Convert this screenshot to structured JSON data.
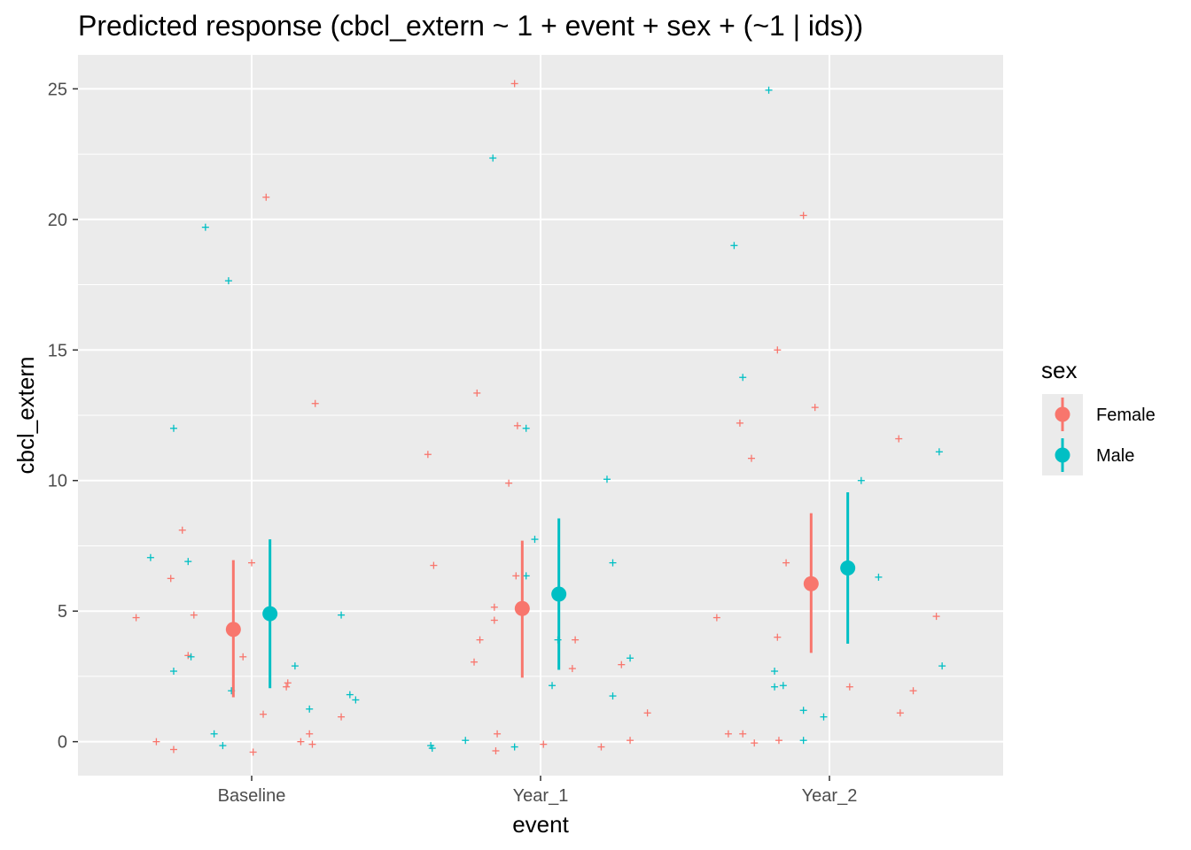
{
  "chart_data": {
    "type": "scatter",
    "title": "Predicted response (cbcl_extern ~ 1 + event + sex + (~1 | ids))",
    "xlabel": "event",
    "ylabel": "cbcl_extern",
    "categories": [
      "Baseline",
      "Year_1",
      "Year_2"
    ],
    "ylim": [
      -1.3,
      26.3
    ],
    "yticks": [
      0,
      5,
      10,
      15,
      20,
      25
    ],
    "grid": true,
    "legend": {
      "title": "sex",
      "position": "right"
    },
    "series": [
      {
        "name": "Female",
        "color": "#F8766D",
        "predicted": [
          {
            "category": "Baseline",
            "mean": 4.3,
            "lower": 1.7,
            "upper": 6.95
          },
          {
            "category": "Year_1",
            "mean": 5.1,
            "lower": 2.45,
            "upper": 7.7
          },
          {
            "category": "Year_2",
            "mean": 6.05,
            "lower": 3.4,
            "upper": 8.75
          }
        ],
        "raw": [
          {
            "category": "Baseline",
            "offset": -0.4,
            "y": 4.75
          },
          {
            "category": "Baseline",
            "offset": -0.33,
            "y": 0.0
          },
          {
            "category": "Baseline",
            "offset": -0.28,
            "y": 6.25
          },
          {
            "category": "Baseline",
            "offset": -0.27,
            "y": -0.3
          },
          {
            "category": "Baseline",
            "offset": -0.24,
            "y": 8.1
          },
          {
            "category": "Baseline",
            "offset": -0.22,
            "y": 3.3
          },
          {
            "category": "Baseline",
            "offset": -0.2,
            "y": 4.85
          },
          {
            "category": "Baseline",
            "offset": -0.03,
            "y": 3.25
          },
          {
            "category": "Baseline",
            "offset": 0.0,
            "y": 6.85
          },
          {
            "category": "Baseline",
            "offset": 0.005,
            "y": -0.4
          },
          {
            "category": "Baseline",
            "offset": 0.04,
            "y": 1.05
          },
          {
            "category": "Baseline",
            "offset": 0.05,
            "y": 20.85
          },
          {
            "category": "Baseline",
            "offset": 0.12,
            "y": 2.1
          },
          {
            "category": "Baseline",
            "offset": 0.125,
            "y": 2.25
          },
          {
            "category": "Baseline",
            "offset": 0.17,
            "y": 0.0
          },
          {
            "category": "Baseline",
            "offset": 0.2,
            "y": 0.3
          },
          {
            "category": "Baseline",
            "offset": 0.21,
            "y": -0.1
          },
          {
            "category": "Baseline",
            "offset": 0.22,
            "y": 12.95
          },
          {
            "category": "Baseline",
            "offset": 0.31,
            "y": 0.95
          },
          {
            "category": "Year_1",
            "offset": -0.39,
            "y": 11.0
          },
          {
            "category": "Year_1",
            "offset": -0.37,
            "y": 6.75
          },
          {
            "category": "Year_1",
            "offset": -0.23,
            "y": 3.05
          },
          {
            "category": "Year_1",
            "offset": -0.22,
            "y": 13.35
          },
          {
            "category": "Year_1",
            "offset": -0.21,
            "y": 3.9
          },
          {
            "category": "Year_1",
            "offset": -0.16,
            "y": 4.65
          },
          {
            "category": "Year_1",
            "offset": -0.16,
            "y": 5.15
          },
          {
            "category": "Year_1",
            "offset": -0.15,
            "y": 0.3
          },
          {
            "category": "Year_1",
            "offset": -0.155,
            "y": -0.35
          },
          {
            "category": "Year_1",
            "offset": -0.11,
            "y": 9.9
          },
          {
            "category": "Year_1",
            "offset": -0.09,
            "y": 25.2
          },
          {
            "category": "Year_1",
            "offset": -0.085,
            "y": 6.35
          },
          {
            "category": "Year_1",
            "offset": -0.08,
            "y": 12.1
          },
          {
            "category": "Year_1",
            "offset": 0.01,
            "y": -0.1
          },
          {
            "category": "Year_1",
            "offset": 0.11,
            "y": 2.8
          },
          {
            "category": "Year_1",
            "offset": 0.12,
            "y": 3.9
          },
          {
            "category": "Year_1",
            "offset": 0.21,
            "y": -0.2
          },
          {
            "category": "Year_1",
            "offset": 0.28,
            "y": 2.95
          },
          {
            "category": "Year_1",
            "offset": 0.31,
            "y": 0.05
          },
          {
            "category": "Year_1",
            "offset": 0.37,
            "y": 1.1
          },
          {
            "category": "Year_2",
            "offset": -0.39,
            "y": 4.75
          },
          {
            "category": "Year_2",
            "offset": -0.35,
            "y": 0.3
          },
          {
            "category": "Year_2",
            "offset": -0.31,
            "y": 12.2
          },
          {
            "category": "Year_2",
            "offset": -0.3,
            "y": 0.3
          },
          {
            "category": "Year_2",
            "offset": -0.27,
            "y": 10.85
          },
          {
            "category": "Year_2",
            "offset": -0.26,
            "y": -0.05
          },
          {
            "category": "Year_2",
            "offset": -0.18,
            "y": 15.0
          },
          {
            "category": "Year_2",
            "offset": -0.18,
            "y": 4.0
          },
          {
            "category": "Year_2",
            "offset": -0.175,
            "y": 0.05
          },
          {
            "category": "Year_2",
            "offset": -0.15,
            "y": 6.85
          },
          {
            "category": "Year_2",
            "offset": -0.09,
            "y": 20.15
          },
          {
            "category": "Year_2",
            "offset": -0.05,
            "y": 12.8
          },
          {
            "category": "Year_2",
            "offset": 0.07,
            "y": 2.1
          },
          {
            "category": "Year_2",
            "offset": 0.24,
            "y": 11.6
          },
          {
            "category": "Year_2",
            "offset": 0.245,
            "y": 1.1
          },
          {
            "category": "Year_2",
            "offset": 0.29,
            "y": 1.95
          },
          {
            "category": "Year_2",
            "offset": 0.37,
            "y": 4.8
          }
        ]
      },
      {
        "name": "Male",
        "color": "#00BFC4",
        "predicted": [
          {
            "category": "Baseline",
            "mean": 4.9,
            "lower": 2.05,
            "upper": 7.75
          },
          {
            "category": "Year_1",
            "mean": 5.65,
            "lower": 2.75,
            "upper": 8.55
          },
          {
            "category": "Year_2",
            "mean": 6.65,
            "lower": 3.75,
            "upper": 9.55
          }
        ],
        "raw": [
          {
            "category": "Baseline",
            "offset": -0.35,
            "y": 7.05
          },
          {
            "category": "Baseline",
            "offset": -0.27,
            "y": 12.0
          },
          {
            "category": "Baseline",
            "offset": -0.27,
            "y": 2.7
          },
          {
            "category": "Baseline",
            "offset": -0.22,
            "y": 6.9
          },
          {
            "category": "Baseline",
            "offset": -0.21,
            "y": 3.25
          },
          {
            "category": "Baseline",
            "offset": -0.16,
            "y": 19.7
          },
          {
            "category": "Baseline",
            "offset": -0.13,
            "y": 0.3
          },
          {
            "category": "Baseline",
            "offset": -0.1,
            "y": -0.15
          },
          {
            "category": "Baseline",
            "offset": -0.08,
            "y": 17.65
          },
          {
            "category": "Baseline",
            "offset": -0.07,
            "y": 1.95
          },
          {
            "category": "Baseline",
            "offset": 0.15,
            "y": 2.9
          },
          {
            "category": "Baseline",
            "offset": 0.2,
            "y": 1.25
          },
          {
            "category": "Baseline",
            "offset": 0.31,
            "y": 4.85
          },
          {
            "category": "Baseline",
            "offset": 0.34,
            "y": 1.8
          },
          {
            "category": "Baseline",
            "offset": 0.36,
            "y": 1.6
          },
          {
            "category": "Year_1",
            "offset": -0.38,
            "y": -0.15
          },
          {
            "category": "Year_1",
            "offset": -0.375,
            "y": -0.25
          },
          {
            "category": "Year_1",
            "offset": -0.26,
            "y": 0.05
          },
          {
            "category": "Year_1",
            "offset": -0.165,
            "y": 22.35
          },
          {
            "category": "Year_1",
            "offset": -0.09,
            "y": -0.2
          },
          {
            "category": "Year_1",
            "offset": -0.05,
            "y": 12.0
          },
          {
            "category": "Year_1",
            "offset": -0.05,
            "y": 6.35
          },
          {
            "category": "Year_1",
            "offset": -0.02,
            "y": 7.75
          },
          {
            "category": "Year_1",
            "offset": 0.04,
            "y": 2.15
          },
          {
            "category": "Year_1",
            "offset": 0.06,
            "y": 3.9
          },
          {
            "category": "Year_1",
            "offset": 0.23,
            "y": 10.05
          },
          {
            "category": "Year_1",
            "offset": 0.25,
            "y": 6.85
          },
          {
            "category": "Year_1",
            "offset": 0.25,
            "y": 1.75
          },
          {
            "category": "Year_1",
            "offset": 0.31,
            "y": 3.2
          },
          {
            "category": "Year_2",
            "offset": -0.33,
            "y": 19.0
          },
          {
            "category": "Year_2",
            "offset": -0.3,
            "y": 13.95
          },
          {
            "category": "Year_2",
            "offset": -0.21,
            "y": 24.95
          },
          {
            "category": "Year_2",
            "offset": -0.19,
            "y": 2.7
          },
          {
            "category": "Year_2",
            "offset": -0.19,
            "y": 2.1
          },
          {
            "category": "Year_2",
            "offset": -0.16,
            "y": 2.15
          },
          {
            "category": "Year_2",
            "offset": -0.09,
            "y": 1.2
          },
          {
            "category": "Year_2",
            "offset": -0.09,
            "y": 0.05
          },
          {
            "category": "Year_2",
            "offset": -0.02,
            "y": 0.95
          },
          {
            "category": "Year_2",
            "offset": 0.11,
            "y": 10.0
          },
          {
            "category": "Year_2",
            "offset": 0.17,
            "y": 6.3
          },
          {
            "category": "Year_2",
            "offset": 0.38,
            "y": 11.1
          },
          {
            "category": "Year_2",
            "offset": 0.39,
            "y": 2.9
          }
        ]
      }
    ]
  }
}
